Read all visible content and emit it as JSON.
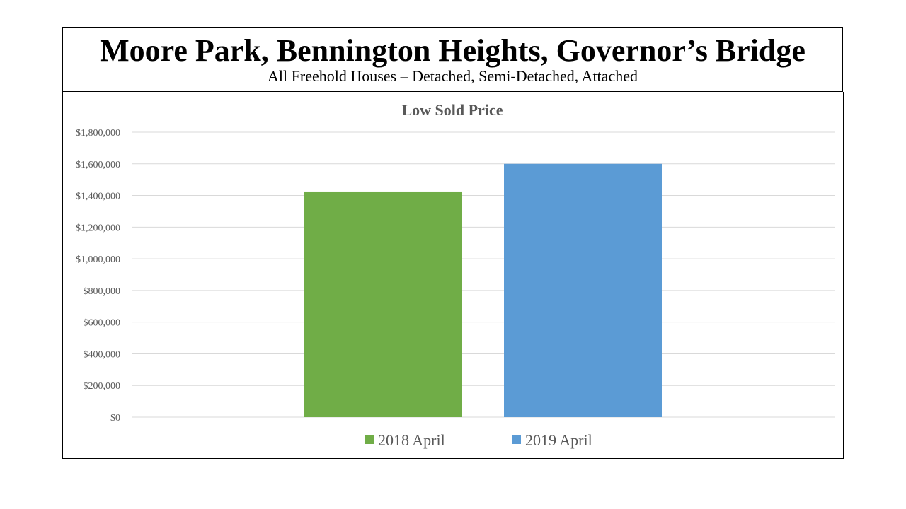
{
  "header": {
    "title": "Moore Park, Bennington Heights, Governor’s Bridge",
    "subtitle": "All Freehold Houses – Detached, Semi-Detached, Attached"
  },
  "chart_data": {
    "type": "bar",
    "title": "Low Sold Price",
    "categories": [
      ""
    ],
    "series": [
      {
        "name": "2018 April",
        "values": [
          1425000
        ],
        "color": "#70AD47"
      },
      {
        "name": "2019 April",
        "values": [
          1600000
        ],
        "color": "#5B9BD5"
      }
    ],
    "ylim": [
      0,
      1800000
    ],
    "yticks": [
      0,
      200000,
      400000,
      600000,
      800000,
      1000000,
      1200000,
      1400000,
      1600000,
      1800000
    ],
    "ytick_labels": [
      "$0",
      "$200,000",
      "$400,000",
      "$600,000",
      "$800,000",
      "$1,000,000",
      "$1,200,000",
      "$1,400,000",
      "$1,600,000",
      "$1,800,000"
    ],
    "grid": true,
    "legend_position": "bottom",
    "colors": {
      "gridline": "#D9D9D9",
      "axis_text": "#595959",
      "title_text": "#595959"
    }
  }
}
